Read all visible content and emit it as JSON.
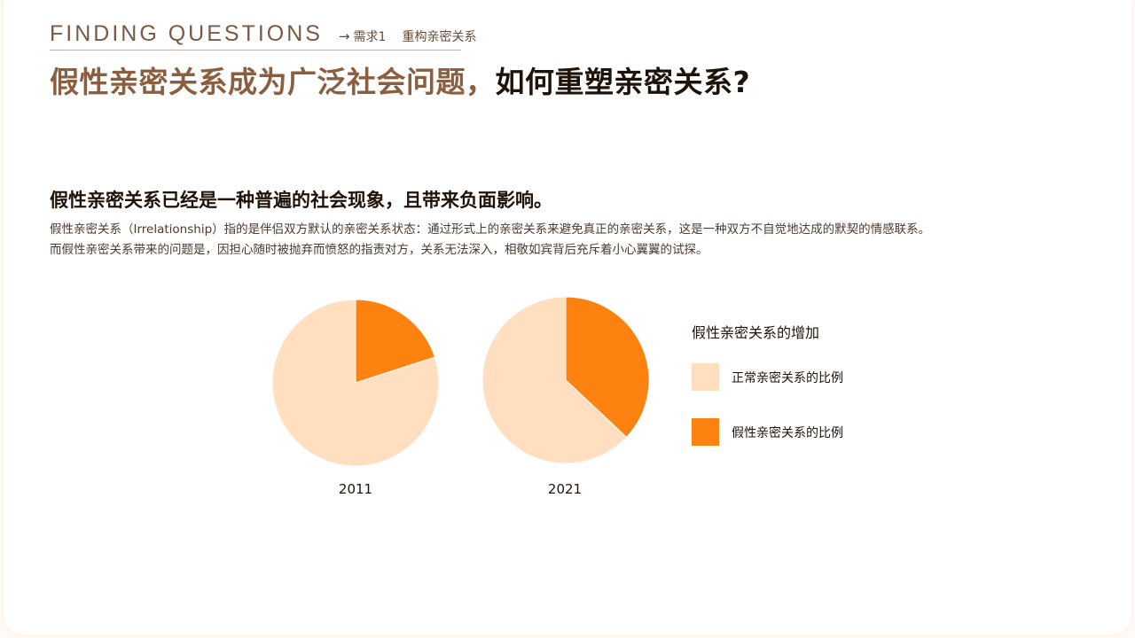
{
  "header": {
    "kicker_en": "FINDING QUESTIONS",
    "kicker_arrow": "→",
    "kicker_requirement": "需求1",
    "kicker_topic": "重构亲密关系",
    "title_part1": "假性亲密关系成为广泛社会问题，",
    "title_part2": "如何重塑亲密关系?"
  },
  "section": {
    "subtitle": "假性亲密关系已经是一种普遍的社会现象，且带来负面影响。",
    "desc_line1": "假性亲密关系（Irrelationship）指的是伴侣双方默认的亲密关系状态：通过形式上的亲密关系来避免真正的亲密关系，这是一种双方不自觉地达成的默契的情感联系。",
    "desc_line2": "而假性亲密关系带来的问题是，因担心随时被抛弃而愤怒的指责对方，关系无法深入，相敬如宾背后充斥着小心翼翼的试探。"
  },
  "colors": {
    "normal": "#ffdfbf",
    "pseudo": "#fd8210",
    "accent_brown": "#8b5e3f"
  },
  "chart_data": {
    "type": "pie",
    "title": "假性亲密关系的增加",
    "legend": [
      "正常亲密关系的比例",
      "假性亲密关系的比例"
    ],
    "legend_position": "right",
    "charts": [
      {
        "label": "2011",
        "slices": [
          {
            "name": "假性亲密关系的比例",
            "value": 20
          },
          {
            "name": "正常亲密关系的比例",
            "value": 80
          }
        ]
      },
      {
        "label": "2021",
        "slices": [
          {
            "name": "假性亲密关系的比例",
            "value": 37
          },
          {
            "name": "正常亲密关系的比例",
            "value": 63
          }
        ]
      }
    ]
  }
}
